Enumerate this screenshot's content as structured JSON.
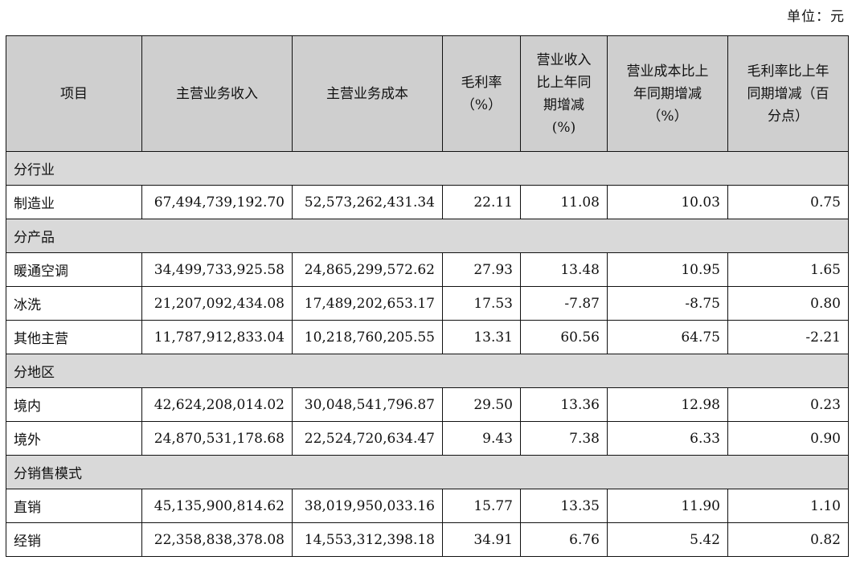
{
  "unit_label": "单位：元",
  "headers": [
    "项目",
    "主营业务收入",
    "主营业务成本",
    "毛利率\n（%）",
    "营业收入\n比上年同\n期增减\n(%)",
    "营业成本比上\n年同期增减\n（%）",
    "毛利率比上年\n同期增减（百\n分点）"
  ],
  "sections": [
    {
      "title": "分行业",
      "rows": [
        [
          "制造业",
          "67,494,739,192.70",
          "52,573,262,431.34",
          "22.11",
          "11.08",
          "10.03",
          "0.75"
        ]
      ]
    },
    {
      "title": "分产品",
      "rows": [
        [
          "暖通空调",
          "34,499,733,925.58",
          "24,865,299,572.62",
          "27.93",
          "13.48",
          "10.95",
          "1.65"
        ],
        [
          "冰洗",
          "21,207,092,434.08",
          "17,489,202,653.17",
          "17.53",
          "-7.87",
          "-8.75",
          "0.80"
        ],
        [
          "其他主营",
          "11,787,912,833.04",
          "10,218,760,205.55",
          "13.31",
          "60.56",
          "64.75",
          "-2.21"
        ]
      ]
    },
    {
      "title": "分地区",
      "rows": [
        [
          "境内",
          "42,624,208,014.02",
          "30,048,541,796.87",
          "29.50",
          "13.36",
          "12.98",
          "0.23"
        ],
        [
          "境外",
          "24,870,531,178.68",
          "22,524,720,634.47",
          "9.43",
          "7.38",
          "6.33",
          "0.90"
        ]
      ]
    },
    {
      "title": "分销售模式",
      "rows": [
        [
          "直销",
          "45,135,900,814.62",
          "38,019,950,033.16",
          "15.77",
          "13.35",
          "11.90",
          "1.10"
        ],
        [
          "经销",
          "22,358,838,378.08",
          "14,553,312,398.18",
          "34.91",
          "6.76",
          "5.42",
          "0.82"
        ]
      ]
    }
  ]
}
